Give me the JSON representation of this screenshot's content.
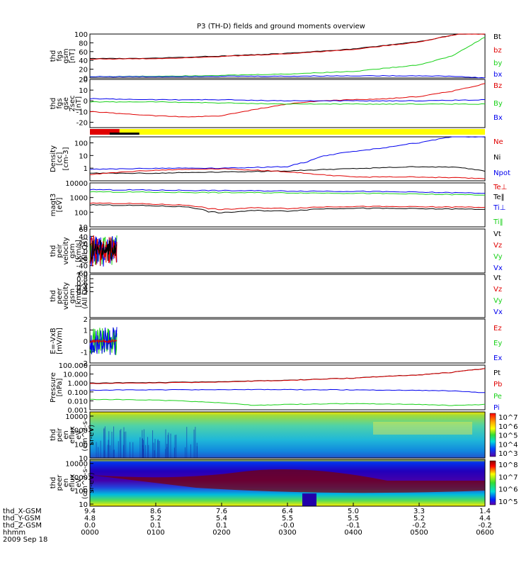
{
  "title": "P3 (TH-D) fields and ground moments overview",
  "colors": {
    "black": "#000000",
    "red": "#e00000",
    "green": "#19d119",
    "blue": "#0000ee",
    "yellow": "#ffff00"
  },
  "chart_data": [
    {
      "type": "line",
      "ylabel": [
        "thd",
        "fgs",
        "gsm",
        "[nT]"
      ],
      "ylim": [
        0,
        100
      ],
      "yticks": [
        "100",
        "80",
        "60",
        "40",
        "20",
        "0"
      ],
      "legend": [
        {
          "name": "Bt",
          "color": "black"
        },
        {
          "name": "bz",
          "color": "red"
        },
        {
          "name": "by",
          "color": "green"
        },
        {
          "name": "bx",
          "color": "blue"
        }
      ],
      "series": [
        {
          "name": "Bt",
          "color": "black",
          "x": [
            0,
            1,
            2,
            3,
            4,
            5,
            5.6,
            6
          ],
          "y": [
            44,
            45,
            50,
            56,
            66,
            83,
            100,
            100
          ]
        },
        {
          "name": "bz",
          "color": "red",
          "x": [
            0,
            1,
            2,
            3,
            4,
            5,
            5.6,
            6
          ],
          "y": [
            43,
            44,
            49,
            55,
            65,
            82,
            100,
            100
          ]
        },
        {
          "name": "by",
          "color": "green",
          "x": [
            0,
            1,
            2,
            3,
            4,
            5,
            5.5,
            6
          ],
          "y": [
            3,
            4,
            6,
            9,
            15,
            30,
            50,
            93
          ]
        },
        {
          "name": "bx",
          "color": "blue",
          "x": [
            0,
            1,
            2,
            3,
            4,
            5,
            5.5,
            6
          ],
          "y": [
            3,
            3,
            4,
            4,
            5,
            5,
            4,
            0
          ]
        }
      ]
    },
    {
      "type": "line",
      "ylabel": [
        "thd",
        "fgs",
        "gse",
        "2sec",
        "[nT]"
      ],
      "ylim": [
        -25,
        20
      ],
      "yticks": [
        "20",
        "10",
        "0",
        "-10",
        "-20"
      ],
      "legend": [
        {
          "name": "Bz",
          "color": "red"
        },
        {
          "name": "By",
          "color": "green"
        },
        {
          "name": "Bx",
          "color": "blue"
        }
      ],
      "series": [
        {
          "name": "Bz",
          "color": "red",
          "x": [
            0,
            0.5,
            1,
            1.5,
            2,
            2.5,
            3,
            3.5,
            4,
            4.5,
            5,
            5.5,
            6
          ],
          "y": [
            -10,
            -12,
            -14,
            -15,
            -14,
            -8,
            -3,
            0,
            1,
            2,
            4,
            9,
            16
          ]
        },
        {
          "name": "By",
          "color": "green",
          "x": [
            0,
            1,
            2,
            3,
            4,
            5,
            6
          ],
          "y": [
            -1,
            -1,
            -2,
            -3,
            -3,
            -3,
            -3
          ]
        },
        {
          "name": "Bx",
          "color": "blue",
          "x": [
            0,
            1,
            2,
            3,
            4,
            5,
            6
          ],
          "y": [
            2,
            1,
            1,
            0,
            0,
            0,
            1
          ]
        }
      ]
    },
    {
      "type": "mode_bar",
      "segments": [
        {
          "from": 0,
          "to": 0.45,
          "color": "red"
        },
        {
          "from": 0.45,
          "to": 6,
          "color": "yellow"
        }
      ]
    },
    {
      "type": "line",
      "ylabel": [
        "Density",
        "[cc]",
        "[cm-3]"
      ],
      "yscale": "log",
      "ylim": [
        0.1,
        300
      ],
      "yticks": [
        "100",
        "10",
        "1"
      ],
      "legend": [
        {
          "name": "Ne",
          "color": "red"
        },
        {
          "name": "Ni",
          "color": "black"
        },
        {
          "name": "Npot",
          "color": "blue"
        }
      ],
      "series": [
        {
          "name": "Npot",
          "color": "blue",
          "x": [
            0,
            1,
            2,
            3,
            3.3,
            3.6,
            4,
            4.5,
            5,
            5.3,
            5.5,
            6
          ],
          "y": [
            0.8,
            1,
            1,
            1.3,
            3,
            10,
            20,
            40,
            100,
            200,
            300,
            300
          ]
        },
        {
          "name": "Ni",
          "color": "black",
          "x": [
            0,
            1,
            2,
            3,
            4,
            5,
            5.5,
            6
          ],
          "y": [
            0.4,
            0.4,
            0.5,
            0.6,
            0.9,
            1.3,
            1.2,
            0.6
          ]
        },
        {
          "name": "Ne",
          "color": "red",
          "x": [
            0,
            0.5,
            1,
            1.5,
            2,
            2.5,
            3,
            3.5,
            4,
            5,
            6
          ],
          "y": [
            0.3,
            0.5,
            0.7,
            0.8,
            0.9,
            0.7,
            0.5,
            0.3,
            0.2,
            0.2,
            0.15
          ]
        }
      ]
    },
    {
      "type": "line",
      "ylabel": [
        "magt3",
        "[eV]"
      ],
      "yscale": "log",
      "ylim": [
        10,
        10000
      ],
      "yticks": [
        "10000",
        "1000",
        "100",
        "10"
      ],
      "legend": [
        {
          "name": "Te⊥",
          "color": "red"
        },
        {
          "name": "Te‖",
          "color": "black"
        },
        {
          "name": "Ti⊥",
          "color": "blue"
        },
        {
          "name": "Ti‖",
          "color": "green"
        }
      ],
      "series": [
        {
          "name": "Ti⊥",
          "color": "blue",
          "x": [
            0,
            1,
            2,
            3,
            4,
            5,
            6
          ],
          "y": [
            3500,
            3200,
            3000,
            2800,
            2700,
            2300,
            2000
          ]
        },
        {
          "name": "Ti‖",
          "color": "green",
          "x": [
            0,
            1,
            2,
            3,
            4,
            5,
            6
          ],
          "y": [
            2500,
            2300,
            2200,
            2100,
            2000,
            1700,
            1500
          ]
        },
        {
          "name": "Te⊥",
          "color": "red",
          "x": [
            0,
            0.5,
            1,
            1.5,
            1.8,
            2,
            2.5,
            3,
            3.5,
            4,
            5,
            6
          ],
          "y": [
            420,
            400,
            350,
            300,
            180,
            150,
            200,
            180,
            230,
            250,
            230,
            220
          ]
        },
        {
          "name": "Te‖",
          "color": "black",
          "x": [
            0,
            0.5,
            1,
            1.5,
            1.8,
            2,
            2.5,
            3,
            3.5,
            4,
            5,
            6
          ],
          "y": [
            320,
            300,
            270,
            230,
            110,
            90,
            130,
            120,
            170,
            190,
            170,
            160
          ]
        }
      ]
    },
    {
      "type": "line",
      "ylabel": [
        "thd",
        "peir",
        "velocity",
        "gsm",
        "[km/s]",
        "(All Qs)"
      ],
      "ylim": [
        -60,
        60
      ],
      "yticks": [
        "60",
        "40",
        "20",
        "0",
        "-20",
        "-40",
        "-60"
      ],
      "legend": [
        {
          "name": "Vt",
          "color": "black"
        },
        {
          "name": "Vz",
          "color": "red"
        },
        {
          "name": "Vy",
          "color": "green"
        },
        {
          "name": "Vx",
          "color": "blue"
        }
      ],
      "series": []
    },
    {
      "type": "line",
      "ylabel": [
        "thd",
        "peer",
        "velocity",
        "gsm",
        "[km/s]",
        "(All Qs)"
      ],
      "ylim": [
        -1,
        1
      ],
      "yticks": [
        "1.0",
        "0.8",
        "0.6",
        "0.4",
        "0.2"
      ],
      "legend": [
        {
          "name": "Vt",
          "color": "black"
        },
        {
          "name": "Vz",
          "color": "red"
        },
        {
          "name": "Vy",
          "color": "green"
        },
        {
          "name": "Vx",
          "color": "blue"
        }
      ],
      "series": []
    },
    {
      "type": "line",
      "ylabel": [
        "E=-VxB",
        "[mV/m]"
      ],
      "ylim": [
        -2,
        2
      ],
      "yticks": [
        "2",
        "1",
        "0",
        "-1",
        "-2"
      ],
      "legend": [
        {
          "name": "Ez",
          "color": "red"
        },
        {
          "name": "Ey",
          "color": "green"
        },
        {
          "name": "Ex",
          "color": "blue"
        }
      ],
      "series": []
    },
    {
      "type": "line",
      "ylabel": [
        "Pressure",
        "[nPa]"
      ],
      "yscale": "log",
      "ylim": [
        0.001,
        100
      ],
      "yticks": [
        "100.000",
        "10.000",
        "1.000",
        "0.100",
        "0.010",
        "0.001"
      ],
      "legend": [
        {
          "name": "Pt",
          "color": "black"
        },
        {
          "name": "Pb",
          "color": "red"
        },
        {
          "name": "Pe",
          "color": "green"
        },
        {
          "name": "Pi",
          "color": "blue"
        }
      ],
      "series": [
        {
          "name": "Pt",
          "color": "black",
          "x": [
            0,
            1,
            2,
            3,
            4,
            5,
            5.5,
            6
          ],
          "y": [
            1,
            1.1,
            1.4,
            2,
            3.5,
            8,
            15,
            40
          ]
        },
        {
          "name": "Pb",
          "color": "red",
          "x": [
            0,
            1,
            2,
            3,
            4,
            5,
            5.5,
            6
          ],
          "y": [
            0.9,
            1,
            1.3,
            1.9,
            3.4,
            7.8,
            14.8,
            39
          ]
        },
        {
          "name": "Pi",
          "color": "blue",
          "x": [
            0,
            1,
            2,
            3,
            4,
            5,
            5.5,
            6
          ],
          "y": [
            0.16,
            0.17,
            0.18,
            0.18,
            0.17,
            0.15,
            0.13,
            0.08
          ]
        },
        {
          "name": "Pe",
          "color": "green",
          "x": [
            0,
            1,
            2,
            2.5,
            3,
            4,
            5,
            5.5,
            6
          ],
          "y": [
            0.015,
            0.012,
            0.006,
            0.003,
            0.004,
            0.005,
            0.004,
            0.003,
            0.004
          ]
        }
      ]
    },
    {
      "type": "heatmap",
      "ylabel": [
        "thd",
        "peir",
        "en",
        "eflux",
        "eV",
        "(cm^2-s-",
        "sr-eV)"
      ],
      "yscale": "log",
      "ylim": [
        10,
        20000
      ],
      "yticks": [
        "10000",
        "1000",
        "100",
        "10"
      ],
      "colorbar": {
        "labels": [
          "10^7",
          "10^6",
          "10^5",
          "10^4",
          "10^3"
        ]
      }
    },
    {
      "type": "heatmap",
      "ylabel": [
        "thd",
        "peer",
        "en",
        "eflux",
        "eV",
        "(cm^2-s-",
        "sr-eV)"
      ],
      "yscale": "log",
      "ylim": [
        7,
        20000
      ],
      "yticks": [
        "10000",
        "1000",
        "100",
        "10"
      ],
      "colorbar": {
        "labels": [
          "10^8",
          "10^7",
          "10^6",
          "10^5"
        ]
      }
    }
  ],
  "xaxis": {
    "rows": [
      {
        "label": "thd_X-GSM",
        "values": [
          "9.4",
          "8.6",
          "7.6",
          "6.4",
          "5.0",
          "3.3",
          "1.4"
        ]
      },
      {
        "label": "thd_Y-GSM",
        "values": [
          "4.8",
          "5.2",
          "5.4",
          "5.5",
          "5.5",
          "5.2",
          "4.4"
        ]
      },
      {
        "label": "thd_Z-GSM",
        "values": [
          "0.0",
          "0.1",
          "0.1",
          "-0.0",
          "-0.1",
          "-0.2",
          "-0.2"
        ]
      },
      {
        "label": "hhmm",
        "values": [
          "0000",
          "0100",
          "0200",
          "0300",
          "0400",
          "0500",
          "0600"
        ]
      }
    ],
    "date": "2009 Sep 18"
  }
}
